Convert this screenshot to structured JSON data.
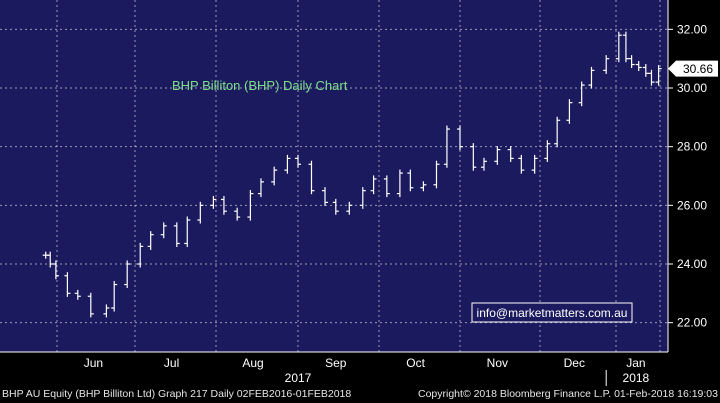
{
  "colors": {
    "plot_background": "#1b1a5e",
    "grid": "#ffffff",
    "candles": "#ffffff",
    "title_text": "#7fe08a",
    "axis_text": "#ffffff",
    "footer_background": "#000000",
    "price_label_background": "#ffffff",
    "price_label_text": "#000000",
    "watermark_border": "#ffffff",
    "watermark_text": "#ffffff"
  },
  "chart_title": "BHP Billiton (BHP) Daily Chart",
  "watermark": "info@marketmatters.com.au",
  "footer": {
    "left": "BHP AU Equity (BHP Billiton Ltd) Graph 217  Daily 02FEB2016-01FEB2018",
    "right": "Copyright© 2018 Bloomberg Finance L.P.   01-Feb-2018 16:19:03"
  },
  "chart_data": {
    "type": "line",
    "style": "bar-ohlc",
    "title": "BHP Billiton (BHP) Daily Chart",
    "grid": true,
    "grid_style": "dashed",
    "ylim": [
      21.0,
      33.0
    ],
    "y_ticks": [
      "22.00",
      "24.00",
      "26.00",
      "28.00",
      "30.00",
      "32.00"
    ],
    "y_axis_side": "right",
    "last_price_label": "30.66",
    "last_price": 30.66,
    "x_month_labels": [
      "Jun",
      "Jul",
      "Aug",
      "Sep",
      "Oct",
      "Nov",
      "Dec",
      "Jan"
    ],
    "x_year_labels": [
      "2017",
      "2018"
    ],
    "series": [
      {
        "x": [
          "2017-05-22",
          "2017-05-26",
          "2017-05-31",
          "2017-06-05",
          "2017-06-09",
          "2017-06-14",
          "2017-06-20",
          "2017-06-23",
          "2017-06-28",
          "2017-07-03",
          "2017-07-07",
          "2017-07-12",
          "2017-07-17",
          "2017-07-21",
          "2017-07-26",
          "2017-07-31",
          "2017-08-04",
          "2017-08-09",
          "2017-08-14",
          "2017-08-18",
          "2017-08-23",
          "2017-08-28",
          "2017-09-01",
          "2017-09-06",
          "2017-09-11",
          "2017-09-15",
          "2017-09-20",
          "2017-09-25",
          "2017-09-29",
          "2017-10-04",
          "2017-10-09",
          "2017-10-13",
          "2017-10-18",
          "2017-10-23",
          "2017-10-27",
          "2017-11-01",
          "2017-11-06",
          "2017-11-10",
          "2017-11-15",
          "2017-11-20",
          "2017-11-24",
          "2017-11-29",
          "2017-12-04",
          "2017-12-08",
          "2017-12-13",
          "2017-12-18",
          "2017-12-22",
          "2017-12-28",
          "2018-01-03",
          "2018-01-08",
          "2018-01-12",
          "2018-01-17",
          "2018-01-22",
          "2018-01-26",
          "2018-01-31"
        ],
        "values": [
          24.3,
          24.0,
          23.6,
          23.0,
          22.9,
          22.3,
          22.5,
          23.3,
          24.0,
          24.6,
          25.0,
          25.3,
          24.7,
          25.5,
          26.0,
          26.2,
          25.8,
          25.6,
          26.4,
          26.8,
          27.2,
          27.6,
          27.4,
          26.5,
          26.1,
          25.8,
          26.0,
          26.5,
          26.9,
          26.4,
          27.1,
          26.6,
          26.7,
          27.4,
          28.6,
          28.0,
          27.3,
          27.5,
          27.9,
          27.6,
          27.2,
          27.6,
          28.1,
          28.9,
          29.5,
          30.1,
          30.6,
          31.0,
          31.8,
          31.0,
          30.8,
          30.7,
          30.5,
          30.2,
          30.66
        ]
      }
    ]
  }
}
